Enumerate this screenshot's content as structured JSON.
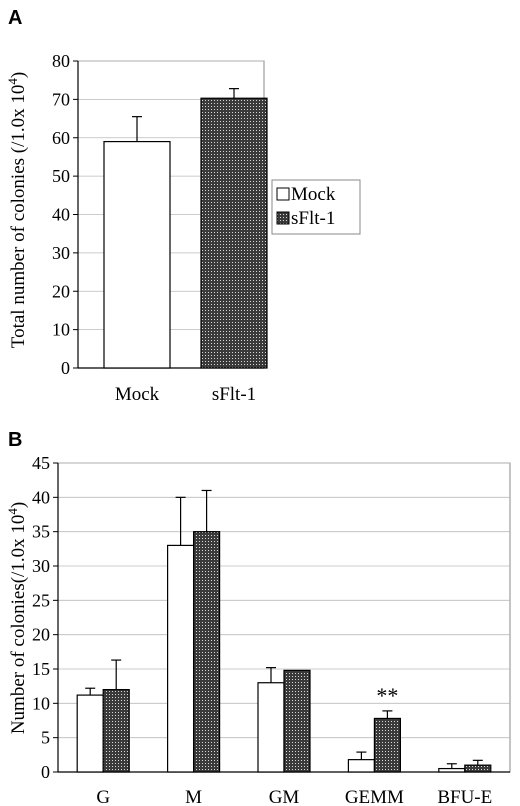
{
  "chart_data": [
    {
      "panel": "A",
      "type": "bar",
      "categories": [
        "Mock",
        "sFlt-1"
      ],
      "series": [
        {
          "name": "Mock",
          "values": [
            59,
            70.3
          ],
          "errors": [
            6.5,
            2.5
          ]
        }
      ],
      "bar_styles": [
        "white",
        "dotted-dark"
      ],
      "ylabel_main": "Total number of colonies (/1.0x 10",
      "ylabel_sup": "4",
      "ylabel_end": ")",
      "ylim": [
        0,
        80
      ],
      "yticks": [
        0,
        10,
        20,
        30,
        40,
        50,
        60,
        70,
        80
      ],
      "legend": {
        "position": "right",
        "entries": [
          {
            "label": "Mock",
            "style": "white"
          },
          {
            "label": "sFlt-1",
            "style": "dotted-dark"
          }
        ]
      }
    },
    {
      "panel": "B",
      "type": "bar",
      "categories": [
        "G",
        "M",
        "GM",
        "GEMM",
        "BFU-E"
      ],
      "series": [
        {
          "name": "Mock",
          "values": [
            11.2,
            33,
            13,
            1.8,
            0.5
          ],
          "errors": [
            1,
            7,
            2.2,
            1.1,
            0.7
          ]
        },
        {
          "name": "sFlt-1",
          "values": [
            12,
            35,
            14.8,
            7.8,
            1
          ],
          "errors": [
            4.3,
            6,
            0,
            1.1,
            0.7
          ]
        }
      ],
      "ylabel_main": "Number of colonies(/1.0x 10",
      "ylabel_sup": "4",
      "ylabel_end": ")",
      "ylim": [
        0,
        45
      ],
      "yticks": [
        0,
        5,
        10,
        15,
        20,
        25,
        30,
        35,
        40,
        45
      ],
      "annotations": [
        {
          "category": "GEMM",
          "text": "**"
        }
      ]
    }
  ],
  "colors": {
    "axis": "#000000",
    "mock_fill": "#ffffff",
    "sflt_fill": "#3a3a3a",
    "sflt_dot": "#d8d8d8",
    "frame": "#888888"
  }
}
